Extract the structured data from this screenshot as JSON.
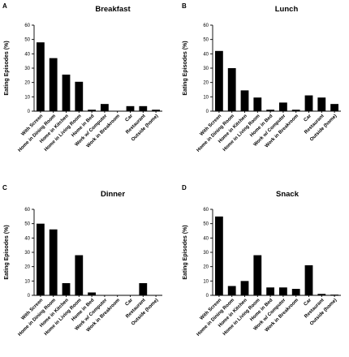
{
  "chart_data": [
    {
      "type": "bar",
      "panel": "A",
      "title": "Breakfast",
      "ylabel": "Eating Episodes (%)",
      "xlabel": "",
      "ylim": [
        0,
        60
      ],
      "yticks": [
        0,
        10,
        20,
        30,
        40,
        50,
        60
      ],
      "categories": [
        "With Screen",
        "Home in Dining Room",
        "Home in Kitchen",
        "Home in Living Room",
        "Home in Bed",
        "Work w/ Computer",
        "Work in Breakroom",
        "Car",
        "Restaurant",
        "Outside (home)"
      ],
      "values": [
        48,
        37,
        25.5,
        20.5,
        1,
        5,
        0,
        3.5,
        3.5,
        1
      ]
    },
    {
      "type": "bar",
      "panel": "B",
      "title": "Lunch",
      "ylabel": "Eating Episodes (%)",
      "xlabel": "",
      "ylim": [
        0,
        60
      ],
      "yticks": [
        0,
        10,
        20,
        30,
        40,
        50,
        60
      ],
      "categories": [
        "With Screen",
        "Home in Dining Room",
        "Home in Kitchen",
        "Home in Living Room",
        "Home in Bed",
        "Work w/ Computer",
        "Work in Breakroom",
        "Car",
        "Restaurant",
        "Outside (home)"
      ],
      "values": [
        42,
        30,
        14.5,
        9.5,
        1,
        6,
        1,
        11,
        9.5,
        5
      ]
    },
    {
      "type": "bar",
      "panel": "C",
      "title": "Dinner",
      "ylabel": "Eating Episodes (%)",
      "xlabel": "",
      "ylim": [
        0,
        60
      ],
      "yticks": [
        0,
        10,
        20,
        30,
        40,
        50,
        60
      ],
      "categories": [
        "With Screen",
        "Home in Dining Room",
        "Home in Kitchen",
        "Home in Living Room",
        "Home in Bed",
        "Work w/ Computer",
        "Work in Breakroom",
        "Car",
        "Restaurant",
        "Outside (home)"
      ],
      "values": [
        50,
        46,
        8.5,
        28,
        2,
        0,
        0,
        0,
        8.5,
        0
      ]
    },
    {
      "type": "bar",
      "panel": "D",
      "title": "Snack",
      "ylabel": "Eating Episodes (%)",
      "xlabel": "",
      "ylim": [
        0,
        60
      ],
      "yticks": [
        0,
        10,
        20,
        30,
        40,
        50,
        60
      ],
      "categories": [
        "With Screen",
        "Home in Dining Room",
        "Home in Kitchen",
        "Home in Living Room",
        "Home in Bed",
        "Work w/ Computer",
        "Work in Breakroom",
        "Car",
        "Restaurant",
        "Outside (home)"
      ],
      "values": [
        55,
        6.5,
        10,
        28,
        5.5,
        5.5,
        4.5,
        21,
        1,
        0.5
      ]
    }
  ],
  "colors": {
    "bar": "#000000",
    "axis": "#000000",
    "background": "#ffffff"
  }
}
